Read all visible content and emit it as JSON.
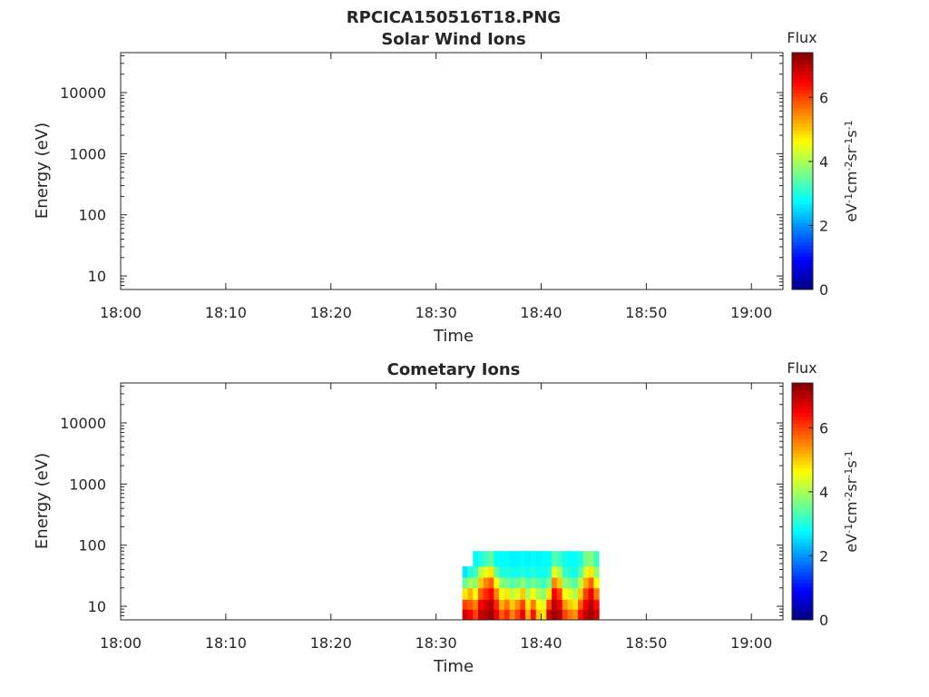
{
  "figure": {
    "title": "RPCICA150516T18.PNG"
  },
  "chart_data": [
    {
      "type": "heatmap",
      "title": "Solar Wind Ions",
      "xlabel": "Time",
      "ylabel": "Energy (eV)",
      "x_ticks": [
        "18:00",
        "18:10",
        "18:20",
        "18:30",
        "18:40",
        "18:50",
        "19:00"
      ],
      "xlim": [
        "18:00",
        "19:03"
      ],
      "y_scale": "log",
      "y_ticks": [
        10,
        100,
        1000,
        10000
      ],
      "y_tick_labels": [
        "10",
        "100",
        "1000",
        "10000"
      ],
      "ylim": [
        6,
        45000
      ],
      "colorbar": {
        "title": "Flux",
        "label": "eV-1cm-2sr-1s-1",
        "range": [
          0,
          7.4
        ],
        "ticks": [
          0,
          2,
          4,
          6
        ],
        "colormap": "jet"
      },
      "cells": []
    },
    {
      "type": "heatmap",
      "title": "Cometary Ions",
      "xlabel": "Time",
      "ylabel": "Energy (eV)",
      "x_ticks": [
        "18:00",
        "18:10",
        "18:20",
        "18:30",
        "18:40",
        "18:50",
        "19:00"
      ],
      "xlim": [
        "18:00",
        "19:03"
      ],
      "y_scale": "log",
      "y_ticks": [
        10,
        100,
        1000,
        10000
      ],
      "y_tick_labels": [
        "10",
        "100",
        "1000",
        "10000"
      ],
      "ylim": [
        6,
        45000
      ],
      "colorbar": {
        "title": "Flux",
        "label": "eV-1cm-2sr-1s-1",
        "range": [
          0,
          7.4
        ],
        "ticks": [
          0,
          2,
          4,
          6
        ],
        "colormap": "jet"
      },
      "x_columns": [
        "18:32:30",
        "18:33:00",
        "18:33:30",
        "18:34:00",
        "18:34:30",
        "18:35:00",
        "18:35:30",
        "18:36:00",
        "18:36:30",
        "18:37:00",
        "18:37:30",
        "18:38:00",
        "18:38:30",
        "18:39:00",
        "18:39:30",
        "18:40:00",
        "18:40:30",
        "18:41:00",
        "18:41:30",
        "18:42:00",
        "18:42:30",
        "18:43:00",
        "18:43:30",
        "18:44:00",
        "18:44:30",
        "18:45:00"
      ],
      "energy_bins": [
        6,
        9,
        13,
        20,
        30,
        45,
        80
      ],
      "flux": [
        [
          6.8,
          6.0,
          4.8,
          3.5,
          2.6,
          0
        ],
        [
          6.5,
          5.8,
          5.2,
          4.0,
          3.0,
          0
        ],
        [
          6.0,
          5.5,
          4.6,
          3.8,
          3.2,
          2.8
        ],
        [
          6.9,
          6.5,
          5.8,
          5.0,
          4.2,
          3.0
        ],
        [
          7.0,
          6.8,
          6.2,
          5.5,
          4.5,
          3.2
        ],
        [
          7.2,
          7.0,
          6.5,
          5.8,
          4.8,
          3.5
        ],
        [
          6.6,
          6.2,
          5.5,
          4.6,
          3.5,
          2.8
        ],
        [
          5.8,
          5.2,
          4.5,
          3.8,
          3.0,
          2.8
        ],
        [
          6.2,
          5.6,
          4.8,
          3.6,
          3.0,
          2.8
        ],
        [
          5.5,
          5.0,
          4.2,
          3.4,
          2.9,
          2.7
        ],
        [
          6.0,
          5.4,
          4.4,
          3.5,
          2.9,
          2.7
        ],
        [
          6.6,
          6.0,
          5.0,
          3.8,
          3.0,
          2.8
        ],
        [
          5.2,
          4.8,
          4.0,
          3.4,
          2.9,
          2.7
        ],
        [
          6.4,
          5.6,
          4.6,
          3.6,
          3.0,
          2.8
        ],
        [
          5.0,
          4.6,
          4.0,
          3.4,
          2.9,
          2.7
        ],
        [
          4.8,
          4.4,
          3.8,
          3.2,
          2.9,
          2.8
        ],
        [
          6.8,
          6.0,
          4.8,
          3.6,
          3.0,
          2.8
        ],
        [
          7.2,
          7.0,
          6.5,
          5.5,
          4.5,
          3.4
        ],
        [
          7.0,
          6.6,
          6.0,
          5.0,
          4.0,
          3.2
        ],
        [
          6.0,
          5.4,
          4.6,
          3.8,
          3.2,
          2.9
        ],
        [
          5.6,
          5.0,
          4.4,
          3.6,
          3.0,
          2.8
        ],
        [
          5.4,
          4.8,
          4.0,
          3.4,
          2.9,
          2.8
        ],
        [
          6.4,
          5.8,
          5.0,
          4.2,
          3.4,
          3.0
        ],
        [
          6.9,
          6.6,
          6.0,
          5.2,
          4.4,
          3.6
        ],
        [
          7.2,
          7.0,
          6.6,
          5.8,
          4.8,
          3.8
        ],
        [
          6.8,
          6.4,
          5.6,
          4.6,
          3.8,
          3.2
        ]
      ]
    }
  ]
}
